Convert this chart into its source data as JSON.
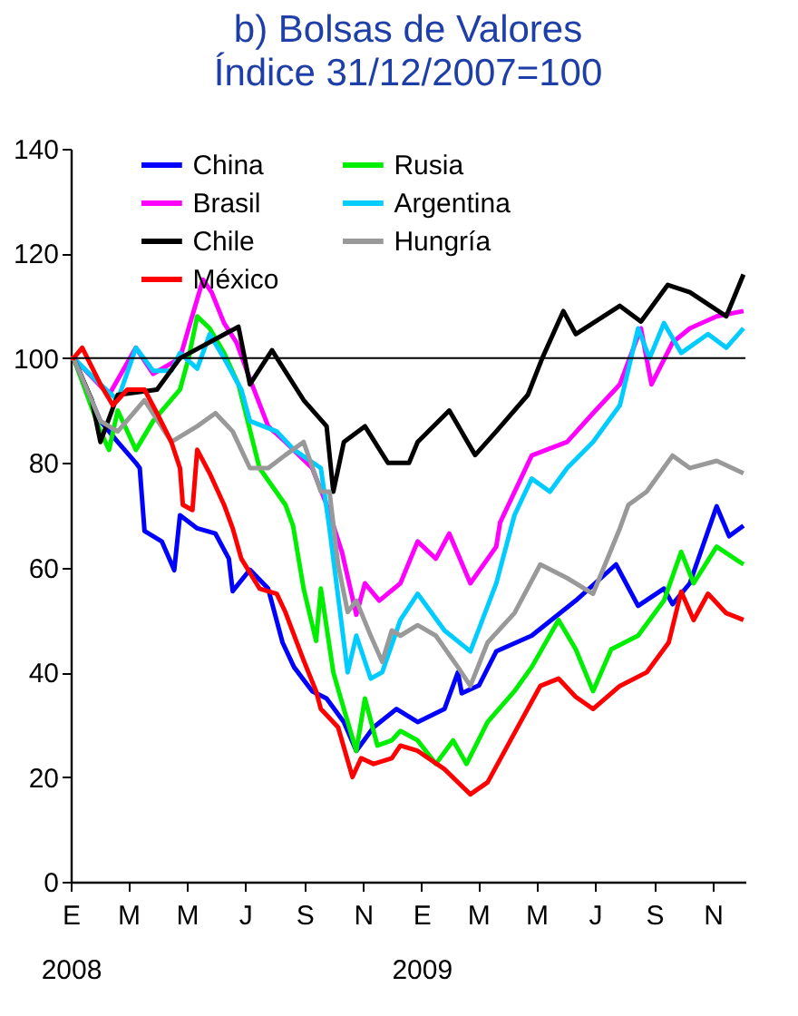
{
  "chart_data": {
    "type": "line",
    "title": "b) Bolsas de Valores",
    "subtitle": "Índice 31/12/2007=100",
    "xlim": [
      "2008-01-01",
      "2009-12-05"
    ],
    "xticks": [
      {
        "value": "2008-01-01",
        "label": "E\n2008"
      },
      {
        "value": "2008-03-01",
        "label": "M"
      },
      {
        "value": "2008-05-01",
        "label": "M"
      },
      {
        "value": "2008-07-01",
        "label": "J"
      },
      {
        "value": "2008-09-01",
        "label": "S"
      },
      {
        "value": "2008-11-01",
        "label": "N"
      },
      {
        "value": "2009-01-01",
        "label": "E\n2009"
      },
      {
        "value": "2009-03-01",
        "label": "M"
      },
      {
        "value": "2009-05-01",
        "label": "M"
      },
      {
        "value": "2009-07-01",
        "label": "J"
      },
      {
        "value": "2009-09-01",
        "label": "S"
      },
      {
        "value": "2009-11-01",
        "label": "N"
      }
    ],
    "ylim": [
      0,
      140
    ],
    "yticks": [
      0,
      20,
      40,
      60,
      80,
      100,
      120,
      140
    ],
    "grid": false,
    "legend": "top",
    "ref_lines": [
      {
        "axis": "y",
        "value": 100,
        "color": "#000000"
      }
    ],
    "series": [
      {
        "name": "China",
        "color": "#0000ff",
        "x": [
          "2008-01-01",
          "2008-01-04",
          "2008-02-01",
          "2008-02-19",
          "2008-03-09",
          "2008-03-13",
          "2008-03-18",
          "2008-04-05",
          "2008-04-18",
          "2008-04-24",
          "2008-05-12",
          "2008-05-31",
          "2008-06-14",
          "2008-06-18",
          "2008-07-06",
          "2008-07-25",
          "2008-08-09",
          "2008-08-21",
          "2008-09-09",
          "2008-09-24",
          "2008-10-12",
          "2008-10-25",
          "2008-11-12",
          "2008-12-06",
          "2008-12-28",
          "2009-01-25",
          "2009-02-08",
          "2009-02-12",
          "2009-03-02",
          "2009-03-20",
          "2009-04-26",
          "2009-06-11",
          "2009-07-23",
          "2009-08-15",
          "2009-09-11",
          "2009-09-20",
          "2009-10-08",
          "2009-11-05",
          "2009-11-18",
          "2009-12-03"
        ],
        "values": [
          100,
          100,
          88,
          84,
          80,
          79,
          67,
          65,
          59.5,
          70,
          67.5,
          66.5,
          61.7,
          55.5,
          59.6,
          56,
          45.7,
          41,
          36.4,
          35,
          30.5,
          25,
          29.5,
          33,
          30.5,
          33,
          40,
          36,
          37.5,
          44,
          47,
          53.7,
          60.6,
          52.7,
          56,
          53,
          57,
          71.7,
          66,
          68
        ]
      },
      {
        "name": "Rusia",
        "color": "#00ee00",
        "x": [
          "2008-01-01",
          "2008-01-04",
          "2008-02-01",
          "2008-02-10",
          "2008-02-19",
          "2008-03-09",
          "2008-03-27",
          "2008-04-24",
          "2008-05-03",
          "2008-05-12",
          "2008-05-25",
          "2008-06-09",
          "2008-06-24",
          "2008-07-16",
          "2008-08-12",
          "2008-08-20",
          "2008-08-31",
          "2008-09-13",
          "2008-09-18",
          "2008-10-01",
          "2008-10-12",
          "2008-10-25",
          "2008-11-03",
          "2008-11-16",
          "2008-12-01",
          "2008-12-10",
          "2008-12-28",
          "2009-01-16",
          "2009-02-03",
          "2009-02-17",
          "2009-03-11",
          "2009-04-08",
          "2009-04-26",
          "2009-05-24",
          "2009-06-11",
          "2009-06-29",
          "2009-07-18",
          "2009-08-15",
          "2009-09-11",
          "2009-09-29",
          "2009-10-12",
          "2009-11-05",
          "2009-12-03"
        ],
        "values": [
          100,
          100,
          86,
          82.5,
          90,
          82.5,
          88,
          94,
          100,
          108,
          105.7,
          101,
          95,
          79,
          72,
          68,
          56,
          46,
          56,
          40,
          33,
          25,
          35,
          26,
          27,
          28.8,
          27,
          22.5,
          27,
          22.5,
          30.5,
          36.4,
          41,
          50,
          44.4,
          36.4,
          44.4,
          47,
          53.7,
          63,
          57,
          64,
          60.6
        ]
      },
      {
        "name": "Brasil",
        "color": "#ff00ff",
        "x": [
          "2008-01-01",
          "2008-01-04",
          "2008-02-10",
          "2008-03-09",
          "2008-03-27",
          "2008-04-24",
          "2008-05-03",
          "2008-05-18",
          "2008-05-27",
          "2008-06-09",
          "2008-06-22",
          "2008-07-06",
          "2008-07-25",
          "2008-08-12",
          "2008-09-09",
          "2008-09-24",
          "2008-10-10",
          "2008-10-25",
          "2008-11-03",
          "2008-11-18",
          "2008-12-10",
          "2008-12-28",
          "2009-01-16",
          "2009-01-30",
          "2009-02-21",
          "2009-03-20",
          "2009-03-24",
          "2009-04-26",
          "2009-06-02",
          "2009-06-29",
          "2009-07-27",
          "2009-08-18",
          "2009-08-29",
          "2009-09-20",
          "2009-10-08",
          "2009-11-05",
          "2009-12-03"
        ],
        "values": [
          100,
          100,
          93,
          102,
          97,
          100,
          105.7,
          115,
          112.6,
          106.7,
          103,
          96,
          87,
          84,
          79,
          72,
          63,
          51,
          57,
          53.7,
          57,
          65,
          61.7,
          66.5,
          57,
          64,
          68.6,
          81.4,
          84,
          89.5,
          95,
          105.7,
          95,
          103,
          105.7,
          108,
          109
        ]
      },
      {
        "name": "Argentina",
        "color": "#00ccff",
        "x": [
          "2008-01-01",
          "2008-01-04",
          "2008-02-01",
          "2008-02-19",
          "2008-03-09",
          "2008-03-27",
          "2008-04-15",
          "2008-04-24",
          "2008-05-12",
          "2008-05-25",
          "2008-06-09",
          "2008-06-27",
          "2008-07-06",
          "2008-08-03",
          "2008-08-21",
          "2008-09-18",
          "2008-09-27",
          "2008-10-16",
          "2008-10-25",
          "2008-11-09",
          "2008-11-21",
          "2008-12-10",
          "2008-12-28",
          "2009-01-25",
          "2009-02-21",
          "2009-03-20",
          "2009-04-08",
          "2009-04-26",
          "2009-05-15",
          "2009-06-02",
          "2009-06-29",
          "2009-07-27",
          "2009-08-15",
          "2009-08-27",
          "2009-09-11",
          "2009-09-29",
          "2009-10-27",
          "2009-11-15",
          "2009-12-03"
        ],
        "values": [
          100,
          100,
          95,
          92,
          102,
          97.6,
          97.6,
          101,
          98,
          104.6,
          100,
          94,
          88,
          86,
          82.5,
          79,
          67.5,
          40,
          47,
          38.8,
          40,
          50,
          55,
          48,
          44,
          57,
          70,
          77,
          74.5,
          79,
          84,
          91,
          105.7,
          100,
          106.7,
          101,
          104.6,
          102,
          105.7
        ]
      },
      {
        "name": "Chile",
        "color": "#000000",
        "x": [
          "2008-01-01",
          "2008-01-04",
          "2008-01-23",
          "2008-02-01",
          "2008-02-19",
          "2008-03-31",
          "2008-04-24",
          "2008-06-24",
          "2008-07-06",
          "2008-07-29",
          "2008-08-31",
          "2008-09-24",
          "2008-10-01",
          "2008-10-12",
          "2008-11-03",
          "2008-11-27",
          "2008-12-19",
          "2008-12-28",
          "2009-01-30",
          "2009-02-26",
          "2009-03-20",
          "2009-04-22",
          "2009-05-07",
          "2009-05-29",
          "2009-06-11",
          "2009-07-27",
          "2009-08-18",
          "2009-09-15",
          "2009-10-08",
          "2009-11-15",
          "2009-12-03"
        ],
        "values": [
          100,
          100,
          92,
          84,
          93,
          94,
          100,
          106,
          95,
          101.5,
          92,
          87,
          74.5,
          84,
          87,
          80,
          80,
          84,
          90,
          81.5,
          86,
          93,
          100,
          109,
          104.6,
          110,
          107,
          114,
          112.6,
          108,
          116
        ]
      },
      {
        "name": "Hungría",
        "color": "#999999",
        "x": [
          "2008-01-01",
          "2008-01-04",
          "2008-02-01",
          "2008-02-19",
          "2008-03-18",
          "2008-04-15",
          "2008-05-12",
          "2008-05-31",
          "2008-06-18",
          "2008-07-06",
          "2008-07-25",
          "2008-08-12",
          "2008-08-31",
          "2008-09-18",
          "2008-09-27",
          "2008-10-06",
          "2008-10-16",
          "2008-10-25",
          "2008-11-09",
          "2008-11-21",
          "2008-12-01",
          "2008-12-10",
          "2008-12-28",
          "2009-01-16",
          "2009-02-08",
          "2009-02-21",
          "2009-03-11",
          "2009-04-08",
          "2009-05-05",
          "2009-06-02",
          "2009-06-29",
          "2009-07-27",
          "2009-08-05",
          "2009-08-24",
          "2009-09-20",
          "2009-10-08",
          "2009-11-05",
          "2009-12-03"
        ],
        "values": [
          100,
          100,
          88,
          86,
          92,
          84,
          87,
          89.5,
          86,
          79,
          79,
          81.5,
          84,
          74.5,
          74.5,
          60.6,
          51.5,
          53.7,
          47,
          42,
          48,
          47,
          49,
          47,
          41,
          37.4,
          45.7,
          51.3,
          60.6,
          58,
          55,
          67.5,
          72,
          74.5,
          81.4,
          79,
          80.4,
          78
        ]
      },
      {
        "name": "México",
        "color": "#ff0000",
        "x": [
          "2008-01-01",
          "2008-01-04",
          "2008-01-13",
          "2008-02-01",
          "2008-02-14",
          "2008-02-29",
          "2008-03-18",
          "2008-03-31",
          "2008-04-15",
          "2008-04-24",
          "2008-04-27",
          "2008-05-07",
          "2008-05-12",
          "2008-05-25",
          "2008-06-09",
          "2008-06-18",
          "2008-06-27",
          "2008-07-16",
          "2008-08-03",
          "2008-08-12",
          "2008-08-31",
          "2008-09-13",
          "2008-09-18",
          "2008-10-06",
          "2008-10-21",
          "2008-10-30",
          "2008-11-12",
          "2008-12-01",
          "2008-12-10",
          "2008-12-28",
          "2009-01-25",
          "2009-02-21",
          "2009-03-11",
          "2009-04-08",
          "2009-05-05",
          "2009-05-24",
          "2009-06-11",
          "2009-06-29",
          "2009-07-27",
          "2009-08-24",
          "2009-09-16",
          "2009-09-29",
          "2009-10-12",
          "2009-10-27",
          "2009-11-15",
          "2009-12-03"
        ],
        "values": [
          100,
          100,
          102,
          95,
          91,
          94,
          94,
          89.5,
          84,
          79,
          72,
          71,
          82.5,
          78,
          72,
          67.5,
          61.7,
          56,
          55,
          51.5,
          42.3,
          36.4,
          33,
          29.5,
          20,
          23.6,
          22.5,
          23.6,
          26,
          25,
          21.5,
          16.7,
          19,
          28.4,
          37.4,
          38.8,
          35.3,
          33,
          37.4,
          40,
          45.7,
          55.4,
          50,
          55,
          51.3,
          50
        ]
      }
    ]
  }
}
